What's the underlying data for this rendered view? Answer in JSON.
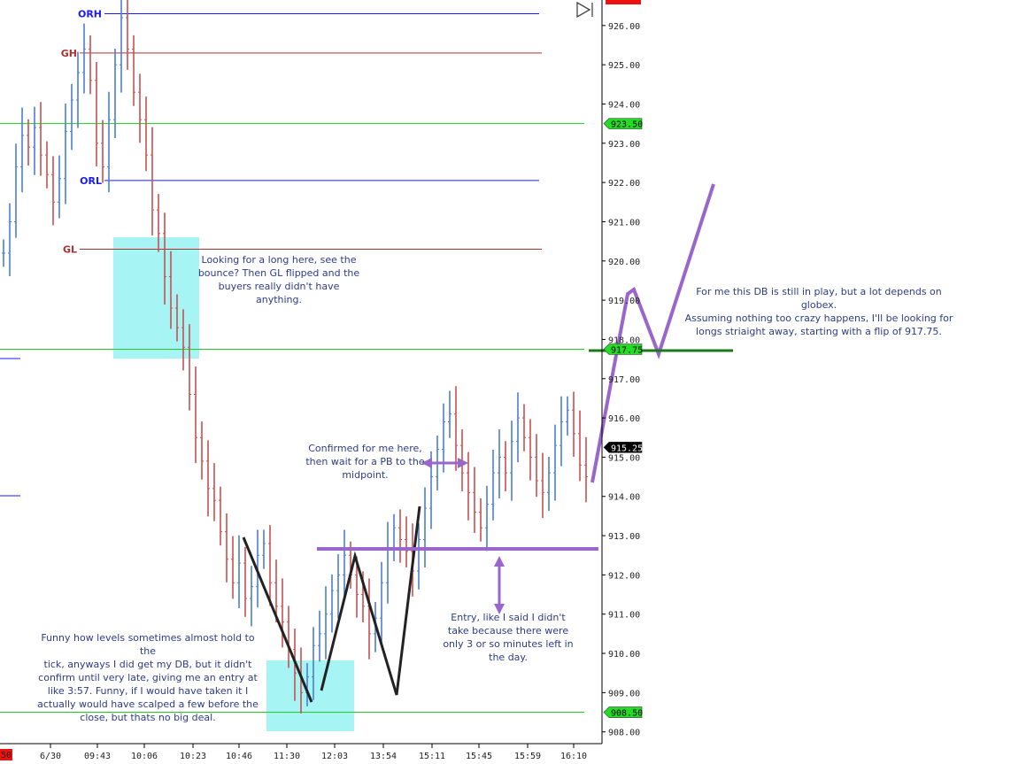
{
  "chart_data": {
    "type": "candlestick",
    "title": "",
    "xlabel": "",
    "ylabel": "",
    "ylim": [
      907.7,
      926.65
    ],
    "grid": false,
    "y_ticks": [
      "926.00",
      "925.00",
      "924.00",
      "923.00",
      "922.00",
      "921.00",
      "920.00",
      "919.00",
      "918.00",
      "917.00",
      "916.00",
      "915.00",
      "914.00",
      "913.00",
      "912.00",
      "911.00",
      "910.00",
      "909.00",
      "908.00"
    ],
    "x_ticks": [
      "6/30",
      "09:43",
      "10:06",
      "10:23",
      "10:46",
      "11:30",
      "12:03",
      "13:54",
      "15:11",
      "15:45",
      "15:59",
      "16:10"
    ],
    "x_ticks_partial_left": "50",
    "levels": [
      {
        "label": "ORH",
        "value": 926.3,
        "color": "#1a1aff"
      },
      {
        "label": "GH",
        "value": 925.3,
        "color": "#b03030"
      },
      {
        "label": "",
        "value": 923.5,
        "color": "#22cc22"
      },
      {
        "label": "ORL",
        "value": 922.05,
        "color": "#1a1aff"
      },
      {
        "label": "GL",
        "value": 920.3,
        "color": "#b03030"
      },
      {
        "label": "",
        "value": 917.75,
        "color": "#22cc22"
      },
      {
        "label": "",
        "value": 908.5,
        "color": "#22cc22"
      }
    ],
    "price_tags": [
      {
        "text": "923.50",
        "value": 923.5,
        "bg": "#22dd22",
        "fg": "#000000"
      },
      {
        "text": "917.75",
        "value": 917.75,
        "bg": "#22dd22",
        "fg": "#000000"
      },
      {
        "text": "915.25",
        "value": 915.25,
        "bg": "#000000",
        "fg": "#ffffff"
      },
      {
        "text": "908.50",
        "value": 908.5,
        "bg": "#22dd22",
        "fg": "#000000"
      }
    ],
    "series": [
      {
        "name": "",
        "approx_closes": [
          920.2,
          921.0,
          922.4,
          923.2,
          922.9,
          923.4,
          922.7,
          922.2,
          921.5,
          922.1,
          923.3,
          924.1,
          924.8,
          925.4,
          924.6,
          923.0,
          922.4,
          923.6,
          925.0,
          926.2,
          925.4,
          924.3,
          923.6,
          922.7,
          921.3,
          920.7,
          919.6,
          918.8,
          918.3,
          917.8,
          916.6,
          915.5,
          914.9,
          914.2,
          913.9,
          913.1,
          912.4,
          911.8,
          912.3,
          911.4,
          911.7,
          912.5,
          912.8,
          911.8,
          911.2,
          910.8,
          910.1,
          909.5,
          909.0,
          909.4,
          910.2,
          910.5,
          911.0,
          911.6,
          912.0,
          912.5,
          912.0,
          911.5,
          911.2,
          910.5,
          910.9,
          911.8,
          912.7,
          913.2,
          912.9,
          912.6,
          912.1,
          912.9,
          913.7,
          914.5,
          915.2,
          915.9,
          916.1,
          915.3,
          914.6,
          914.1,
          913.6,
          913.2,
          913.8,
          914.6,
          915.0,
          914.6,
          915.4,
          916.0,
          915.5,
          915.0,
          914.4,
          914.1,
          914.6,
          915.3,
          915.9,
          916.2,
          915.6,
          914.8,
          914.5
        ]
      }
    ],
    "annotations": [
      {
        "text": "Looking for a long here, see the\nbounce? Then GL flipped and the\nbuyers really didn't have anything."
      },
      {
        "text": "Confirmed for me here,\nthen wait for a PB to the\nmidpoint."
      },
      {
        "text": "Funny how levels sometimes almost hold to the\ntick, anyways I did get my DB, but it didn't\nconfirm until very late, giving me an entry at\nlike 3:57. Funny, if I would have taken it I\nactually would have scalped a few before the\nclose, but thats no big deal."
      },
      {
        "text": "Entry, like I said I didn't\ntake because there were\nonly 3 or so minutes left in\nthe day."
      },
      {
        "text": "For me this DB is still in play, but a lot depends on globex.\nAssuming nothing too crazy happens, I'll be looking for\nlongs striaight away, starting with a flip of 917.75."
      }
    ],
    "drawings": [
      {
        "kind": "box",
        "color": "#a6f4f4"
      },
      {
        "kind": "box",
        "color": "#a6f4f4"
      },
      {
        "kind": "trendline",
        "color": "#222222"
      },
      {
        "kind": "trendline",
        "color": "#9966cc"
      },
      {
        "kind": "double-arrow",
        "color": "#9966cc"
      }
    ],
    "colors": {
      "up": "#4a7fd0",
      "down": "#c85050",
      "accent": "#9966cc"
    }
  }
}
